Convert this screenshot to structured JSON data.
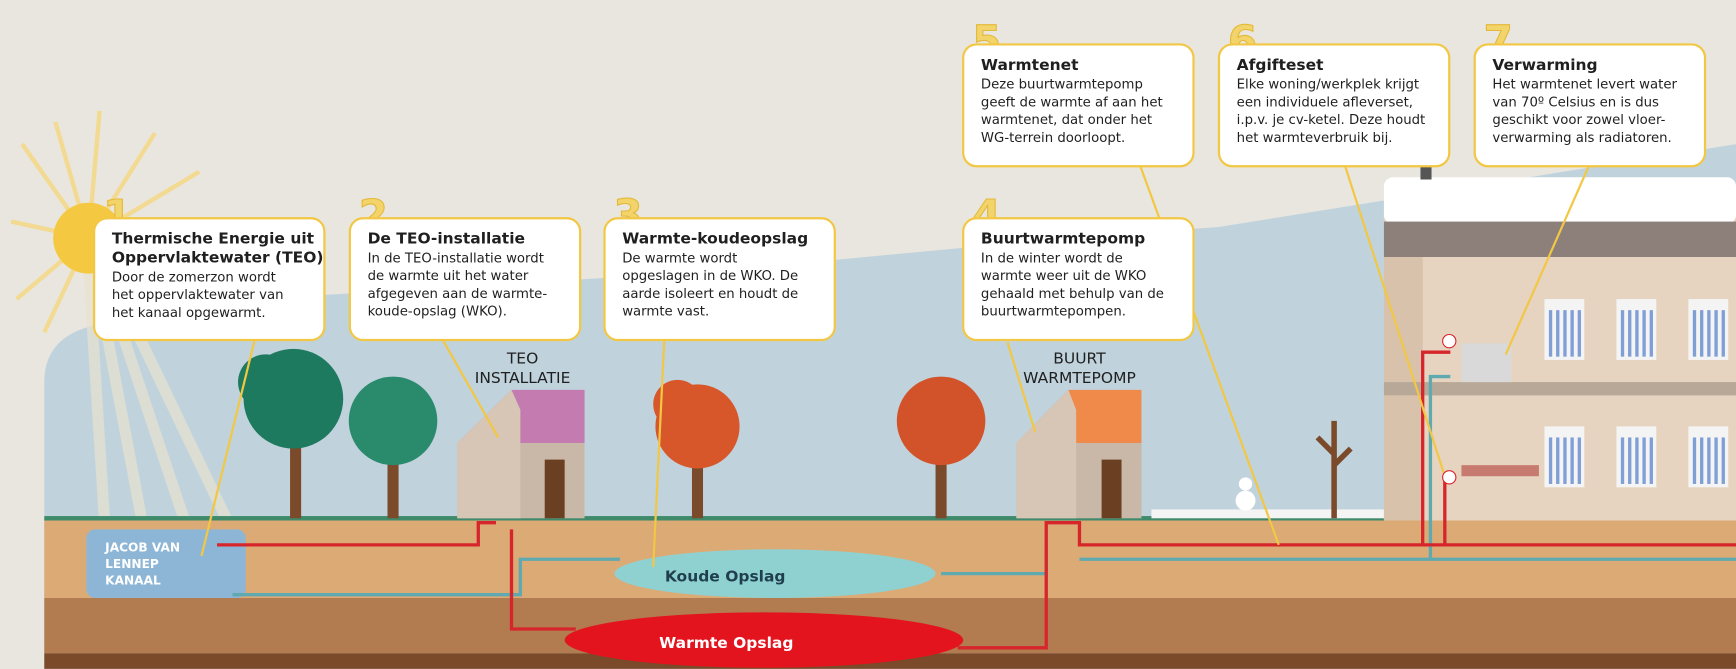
{
  "steps": [
    {
      "number": "1",
      "title": [
        "Thermische Energie uit",
        "Oppervlaktewater (TEO)"
      ],
      "body": [
        "Door de zomerzon wordt",
        "het oppervlaktewater van",
        "het kanaal opgewarmt."
      ]
    },
    {
      "number": "2",
      "title": [
        "De TEO-installatie"
      ],
      "body": [
        "In de TEO-installatie wordt",
        "de warmte uit het water",
        "afgegeven aan de warmte-",
        "koude-opslag (WKO)."
      ]
    },
    {
      "number": "3",
      "title": [
        "Warmte-koudeopslag"
      ],
      "body": [
        "De warmte wordt",
        "opgeslagen in de WKO. De",
        "aarde isoleert en houdt de",
        "warmte vast."
      ]
    },
    {
      "number": "4",
      "title": [
        "Buurtwarmtepomp"
      ],
      "body": [
        "In de winter wordt de",
        "warmte weer uit de WKO",
        "gehaald met behulp van de",
        "buurtwarmtepompen."
      ]
    },
    {
      "number": "5",
      "title": [
        "Warmtenet"
      ],
      "body": [
        "Deze  buurtwarmtepomp",
        "geeft de warmte af aan het",
        "warmtenet, dat onder het",
        "WG-terrein doorloopt."
      ]
    },
    {
      "number": "6",
      "title": [
        "Afgifteset"
      ],
      "body": [
        "Elke woning/werkplek krijgt",
        "een individuele afleverset,",
        "i.p.v. je cv-ketel. Deze houdt",
        "het warmteverbruik bij."
      ]
    },
    {
      "number": "7",
      "title": [
        "Verwarming"
      ],
      "body": [
        "Het warmtenet levert water",
        "van 70º Celsius en is dus",
        "geschikt voor zowel vloer-",
        "verwarming als radiatoren."
      ]
    }
  ],
  "labels": {
    "teo_installatie": [
      "TEO",
      "INSTALLATIE"
    ],
    "buurt_warmtepomp": [
      "BUURT",
      "WARMTEPOMP"
    ],
    "kanaal": [
      "JACOB VAN",
      "LENNEP",
      "KANAAL"
    ],
    "koude_opslag": "Koude Opslag",
    "warmte_opslag": "Warmte Opslag"
  }
}
